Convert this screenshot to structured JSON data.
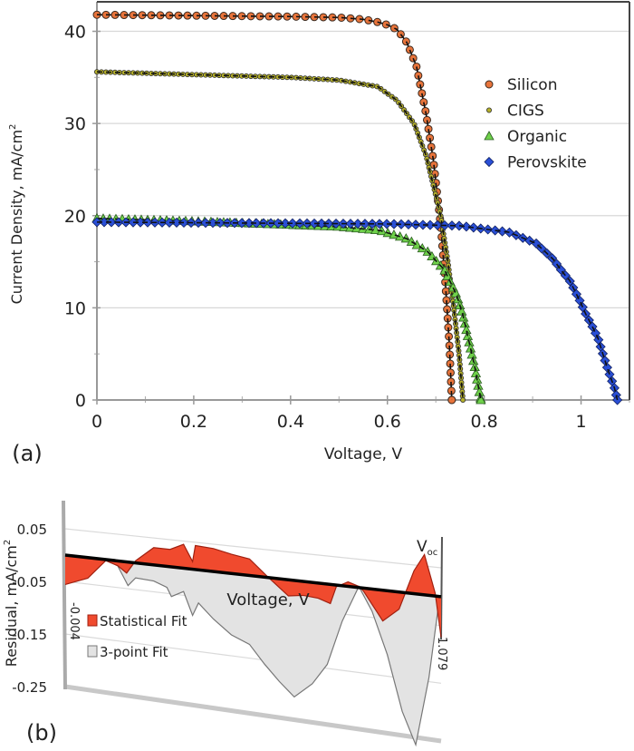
{
  "chart_data": [
    {
      "type": "scatter",
      "panel_label": "(a)",
      "xlabel": "Voltage, V",
      "ylabel": "Current Density, mA/cm",
      "ylabel_superscript": "2",
      "xlim": [
        0,
        1.1
      ],
      "ylim": [
        0,
        43.2
      ],
      "xticks": [
        "0",
        "0.2",
        "0.4",
        "0.6",
        "0.8",
        "1"
      ],
      "yticks": [
        "0",
        "10",
        "20",
        "30",
        "40"
      ],
      "grid": true,
      "legend_position": "right",
      "series": [
        {
          "name": "Silicon",
          "marker": "circle",
          "color": "#e8743b",
          "points": [
            [
              0,
              41.8
            ],
            [
              0.2,
              41.7
            ],
            [
              0.4,
              41.6
            ],
            [
              0.5,
              41.5
            ],
            [
              0.55,
              41.3
            ],
            [
              0.58,
              41.0
            ],
            [
              0.6,
              40.7
            ],
            [
              0.62,
              40.2
            ],
            [
              0.64,
              38.8
            ],
            [
              0.66,
              36.2
            ],
            [
              0.68,
              31
            ],
            [
              0.695,
              26
            ],
            [
              0.71,
              19
            ],
            [
              0.72,
              12.5
            ],
            [
              0.728,
              6
            ],
            [
              0.733,
              0
            ]
          ]
        },
        {
          "name": "CIGS",
          "marker": "small-circle",
          "color": "#b5b02a",
          "points": [
            [
              0,
              35.6
            ],
            [
              0.2,
              35.3
            ],
            [
              0.4,
              35.0
            ],
            [
              0.5,
              34.7
            ],
            [
              0.58,
              34.0
            ],
            [
              0.62,
              32.5
            ],
            [
              0.655,
              30
            ],
            [
              0.68,
              26.5
            ],
            [
              0.71,
              20
            ],
            [
              0.725,
              15
            ],
            [
              0.737,
              10
            ],
            [
              0.748,
              5
            ],
            [
              0.756,
              0
            ]
          ]
        },
        {
          "name": "Organic",
          "marker": "triangle",
          "color": "#6fd14a",
          "points": [
            [
              0,
              19.7
            ],
            [
              0.2,
              19.4
            ],
            [
              0.4,
              19.0
            ],
            [
              0.5,
              18.8
            ],
            [
              0.584,
              18.4
            ],
            [
              0.64,
              17.5
            ],
            [
              0.683,
              16.1
            ],
            [
              0.718,
              14.1
            ],
            [
              0.743,
              11.4
            ],
            [
              0.756,
              9.2
            ],
            [
              0.767,
              6.7
            ],
            [
              0.78,
              3.7
            ],
            [
              0.793,
              0
            ]
          ]
        },
        {
          "name": "Perovskite",
          "marker": "diamond",
          "color": "#2a4fd6",
          "points": [
            [
              0,
              19.3
            ],
            [
              0.3,
              19.2
            ],
            [
              0.6,
              19.1
            ],
            [
              0.75,
              18.9
            ],
            [
              0.851,
              18.2
            ],
            [
              0.907,
              17.0
            ],
            [
              0.942,
              15.3
            ],
            [
              0.963,
              13.8
            ],
            [
              0.976,
              13.0
            ],
            [
              0.998,
              10.7
            ],
            [
              1.009,
              9.4
            ],
            [
              1.022,
              8.1
            ],
            [
              1.035,
              6.7
            ],
            [
              1.045,
              5.0
            ],
            [
              1.056,
              3.2
            ],
            [
              1.069,
              1.3
            ],
            [
              1.075,
              0
            ]
          ]
        }
      ]
    },
    {
      "type": "area",
      "panel_label": "(b)",
      "xlabel": "Voltage, V",
      "ylabel": "Residual, mA/cm",
      "ylabel_superscript": "2",
      "ylim": [
        -0.25,
        0.05
      ],
      "xlim": [
        -0.004,
        1.079
      ],
      "yticks": [
        "0.05",
        "-0.05",
        "-0.15",
        "-0.25"
      ],
      "x_end_labels": [
        "-0.004",
        "1.079"
      ],
      "annotation": "V",
      "annotation_subscript": "oc",
      "grid": true,
      "legend_position": "left",
      "series": [
        {
          "name": "3-point Fit",
          "color": "#e3e3e3",
          "points": [
            [
              -0.004,
              0
            ],
            [
              0.113,
              -0.002
            ],
            [
              0.147,
              -0.009
            ],
            [
              0.177,
              -0.044
            ],
            [
              0.199,
              -0.028
            ],
            [
              0.251,
              -0.03
            ],
            [
              0.289,
              -0.039
            ],
            [
              0.302,
              -0.055
            ],
            [
              0.337,
              -0.043
            ],
            [
              0.363,
              -0.085
            ],
            [
              0.38,
              -0.061
            ],
            [
              0.423,
              -0.087
            ],
            [
              0.475,
              -0.112
            ],
            [
              0.527,
              -0.125
            ],
            [
              0.57,
              -0.157
            ],
            [
              0.613,
              -0.185
            ],
            [
              0.656,
              -0.209
            ],
            [
              0.708,
              -0.181
            ],
            [
              0.751,
              -0.143
            ],
            [
              0.794,
              -0.063
            ],
            [
              0.842,
              0.002
            ],
            [
              0.88,
              -0.039
            ],
            [
              0.924,
              -0.112
            ],
            [
              0.967,
              -0.208
            ],
            [
              1.006,
              -0.263
            ],
            [
              1.044,
              -0.143
            ],
            [
              1.075,
              0
            ]
          ]
        },
        {
          "name": "Statistical Fit",
          "color": "#f04a2e",
          "points": [
            [
              -0.004,
              -0.056
            ],
            [
              0.061,
              -0.039
            ],
            [
              0.113,
              -0.002
            ],
            [
              0.147,
              -0.009
            ],
            [
              0.173,
              -0.021
            ],
            [
              0.199,
              0.004
            ],
            [
              0.251,
              0.032
            ],
            [
              0.298,
              0.032
            ],
            [
              0.337,
              0.044
            ],
            [
              0.363,
              0.014
            ],
            [
              0.371,
              0.044
            ],
            [
              0.423,
              0.042
            ],
            [
              0.475,
              0.035
            ],
            [
              0.527,
              0.03
            ],
            [
              0.578,
              0.002
            ],
            [
              0.639,
              -0.029
            ],
            [
              0.682,
              -0.025
            ],
            [
              0.725,
              -0.027
            ],
            [
              0.76,
              -0.034
            ],
            [
              0.777,
              -0.003
            ],
            [
              0.811,
              0.008
            ],
            [
              0.842,
              0.002
            ],
            [
              0.855,
              -0.005
            ],
            [
              0.911,
              -0.054
            ],
            [
              0.958,
              -0.03
            ],
            [
              1.001,
              0.04
            ],
            [
              1.031,
              0.07
            ],
            [
              1.062,
              0.005
            ],
            [
              1.079,
              -0.07
            ]
          ]
        }
      ]
    }
  ]
}
